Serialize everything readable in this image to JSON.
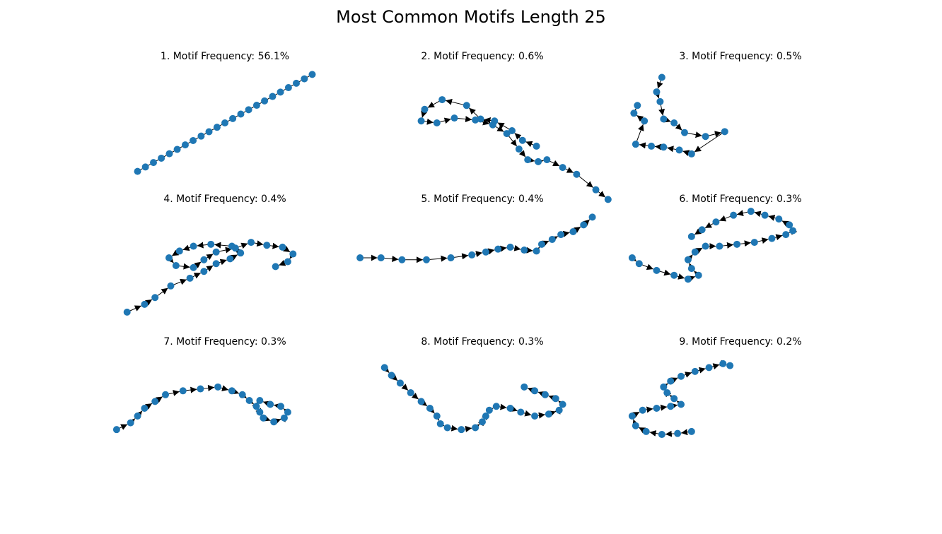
{
  "title": "Most Common Motifs Length 25",
  "colors": {
    "node": "#1f77b4",
    "edge": "#000000"
  },
  "chart_data": {
    "type": "network",
    "panels": [
      {
        "title": "1. Motif Frequency: 56.1%",
        "points": [
          [
            -0.5,
            -0.5
          ],
          [
            -0.455,
            -0.455
          ],
          [
            -0.409,
            -0.409
          ],
          [
            -0.364,
            -0.364
          ],
          [
            -0.318,
            -0.318
          ],
          [
            -0.273,
            -0.273
          ],
          [
            -0.227,
            -0.227
          ],
          [
            -0.182,
            -0.182
          ],
          [
            -0.136,
            -0.136
          ],
          [
            -0.091,
            -0.091
          ],
          [
            -0.045,
            -0.045
          ],
          [
            0.0,
            0.0
          ],
          [
            0.045,
            0.045
          ],
          [
            0.091,
            0.091
          ],
          [
            0.136,
            0.136
          ],
          [
            0.182,
            0.182
          ],
          [
            0.227,
            0.227
          ],
          [
            0.273,
            0.273
          ],
          [
            0.318,
            0.318
          ],
          [
            0.364,
            0.364
          ],
          [
            0.409,
            0.409
          ],
          [
            0.455,
            0.455
          ],
          [
            0.5,
            0.5
          ]
        ],
        "arrows": false
      },
      {
        "title": "2. Motif Frequency: 0.6%",
        "points": [
          [
            0.31,
            -0.24
          ],
          [
            0.23,
            -0.18
          ],
          [
            0.17,
            -0.08
          ],
          [
            0.07,
            0.02
          ],
          [
            -0.01,
            0.04
          ],
          [
            -0.09,
            0.18
          ],
          [
            -0.23,
            0.24
          ],
          [
            -0.33,
            0.14
          ],
          [
            -0.35,
            0.02
          ],
          [
            -0.26,
            0.0
          ],
          [
            -0.16,
            0.05
          ],
          [
            -0.04,
            0.03
          ],
          [
            0.06,
            -0.02
          ],
          [
            0.14,
            -0.11
          ],
          [
            0.21,
            -0.27
          ],
          [
            0.26,
            -0.38
          ],
          [
            0.32,
            -0.4
          ],
          [
            0.37,
            -0.38
          ],
          [
            0.46,
            -0.46
          ],
          [
            0.54,
            -0.53
          ],
          [
            0.65,
            -0.69
          ],
          [
            0.72,
            -0.79
          ]
        ],
        "arrows": true
      },
      {
        "title": "3. Motif Frequency: 0.5%",
        "points": [
          [
            -0.45,
            0.47
          ],
          [
            -0.48,
            0.32
          ],
          [
            -0.46,
            0.22
          ],
          [
            -0.44,
            0.04
          ],
          [
            -0.38,
            0.0
          ],
          [
            -0.32,
            -0.1
          ],
          [
            -0.2,
            -0.14
          ],
          [
            -0.09,
            -0.09
          ],
          [
            -0.28,
            -0.32
          ],
          [
            -0.35,
            -0.28
          ],
          [
            -0.44,
            -0.25
          ],
          [
            -0.51,
            -0.24
          ],
          [
            -0.6,
            -0.22
          ],
          [
            -0.55,
            0.02
          ],
          [
            -0.61,
            0.1
          ],
          [
            -0.59,
            0.18
          ]
        ],
        "arrows": true
      },
      {
        "title": "4. Motif Frequency: 0.4%",
        "points": [
          [
            -0.56,
            -0.48
          ],
          [
            -0.46,
            -0.4
          ],
          [
            -0.4,
            -0.33
          ],
          [
            -0.31,
            -0.21
          ],
          [
            -0.2,
            -0.13
          ],
          [
            -0.12,
            -0.06
          ],
          [
            -0.05,
            0.02
          ],
          [
            0.03,
            0.07
          ],
          [
            0.09,
            0.13
          ],
          [
            0.04,
            0.2
          ],
          [
            -0.08,
            0.22
          ],
          [
            -0.18,
            0.2
          ],
          [
            -0.26,
            0.15
          ],
          [
            -0.32,
            0.08
          ],
          [
            -0.28,
            0.0
          ],
          [
            -0.18,
            -0.02
          ],
          [
            -0.12,
            0.06
          ],
          [
            -0.05,
            0.14
          ],
          [
            0.06,
            0.18
          ],
          [
            0.15,
            0.24
          ],
          [
            0.24,
            0.21
          ],
          [
            0.33,
            0.19
          ],
          [
            0.39,
            0.12
          ],
          [
            0.36,
            0.04
          ],
          [
            0.29,
            -0.01
          ]
        ],
        "arrows": true
      },
      {
        "title": "5. Motif Frequency: 0.4%",
        "points": [
          [
            -0.7,
            0.08
          ],
          [
            -0.58,
            0.08
          ],
          [
            -0.46,
            0.06
          ],
          [
            -0.32,
            0.06
          ],
          [
            -0.18,
            0.08
          ],
          [
            -0.06,
            0.11
          ],
          [
            0.02,
            0.14
          ],
          [
            0.09,
            0.17
          ],
          [
            0.16,
            0.19
          ],
          [
            0.24,
            0.16
          ],
          [
            0.31,
            0.15
          ],
          [
            0.34,
            0.22
          ],
          [
            0.4,
            0.27
          ],
          [
            0.45,
            0.32
          ],
          [
            0.52,
            0.35
          ],
          [
            0.58,
            0.42
          ],
          [
            0.63,
            0.5
          ]
        ],
        "arrows": true
      },
      {
        "title": "6. Motif Frequency: 0.3%",
        "points": [
          [
            -0.62,
            0.08
          ],
          [
            -0.58,
            0.02
          ],
          [
            -0.48,
            -0.05
          ],
          [
            -0.38,
            -0.1
          ],
          [
            -0.3,
            -0.14
          ],
          [
            -0.24,
            -0.1
          ],
          [
            -0.28,
            -0.03
          ],
          [
            -0.3,
            0.06
          ],
          [
            -0.26,
            0.14
          ],
          [
            -0.2,
            0.2
          ],
          [
            -0.12,
            0.2
          ],
          [
            -0.02,
            0.22
          ],
          [
            0.08,
            0.24
          ],
          [
            0.18,
            0.28
          ],
          [
            0.26,
            0.32
          ],
          [
            0.3,
            0.36
          ],
          [
            0.28,
            0.42
          ],
          [
            0.22,
            0.48
          ],
          [
            0.14,
            0.52
          ],
          [
            0.06,
            0.56
          ],
          [
            -0.04,
            0.52
          ],
          [
            -0.14,
            0.45
          ],
          [
            -0.22,
            0.37
          ],
          [
            -0.28,
            0.3
          ]
        ],
        "arrows": true
      },
      {
        "title": "7. Motif Frequency: 0.3%",
        "points": [
          [
            -0.62,
            -0.22
          ],
          [
            -0.54,
            -0.15
          ],
          [
            -0.5,
            -0.08
          ],
          [
            -0.46,
            0.0
          ],
          [
            -0.4,
            0.07
          ],
          [
            -0.34,
            0.14
          ],
          [
            -0.24,
            0.18
          ],
          [
            -0.14,
            0.2
          ],
          [
            -0.04,
            0.22
          ],
          [
            0.04,
            0.18
          ],
          [
            0.1,
            0.14
          ],
          [
            0.14,
            0.08
          ],
          [
            0.18,
            0.02
          ],
          [
            0.2,
            -0.04
          ],
          [
            0.22,
            -0.1
          ],
          [
            0.28,
            -0.14
          ],
          [
            0.34,
            -0.1
          ],
          [
            0.36,
            -0.04
          ],
          [
            0.32,
            0.02
          ],
          [
            0.26,
            0.04
          ],
          [
            0.2,
            0.08
          ]
        ],
        "arrows": true
      },
      {
        "title": "8. Motif Frequency: 0.3%",
        "points": [
          [
            -0.56,
            0.42
          ],
          [
            -0.52,
            0.34
          ],
          [
            -0.47,
            0.26
          ],
          [
            -0.41,
            0.16
          ],
          [
            -0.35,
            0.07
          ],
          [
            -0.3,
            0.0
          ],
          [
            -0.26,
            -0.08
          ],
          [
            -0.24,
            -0.16
          ],
          [
            -0.2,
            -0.2
          ],
          [
            -0.12,
            -0.22
          ],
          [
            -0.04,
            -0.2
          ],
          [
            0.0,
            -0.14
          ],
          [
            0.02,
            -0.08
          ],
          [
            0.04,
            -0.02
          ],
          [
            0.08,
            0.02
          ],
          [
            0.16,
            0.0
          ],
          [
            0.22,
            -0.04
          ],
          [
            0.3,
            -0.08
          ],
          [
            0.38,
            -0.06
          ],
          [
            0.44,
            -0.02
          ],
          [
            0.46,
            0.04
          ],
          [
            0.42,
            0.1
          ],
          [
            0.36,
            0.14
          ],
          [
            0.3,
            0.18
          ],
          [
            0.24,
            0.22
          ]
        ],
        "arrows": true
      },
      {
        "title": "9. Motif Frequency: 0.2%",
        "points": [
          [
            -0.28,
            -0.24
          ],
          [
            -0.36,
            -0.26
          ],
          [
            -0.45,
            -0.27
          ],
          [
            -0.54,
            -0.24
          ],
          [
            -0.6,
            -0.18
          ],
          [
            -0.62,
            -0.08
          ],
          [
            -0.56,
            -0.02
          ],
          [
            -0.48,
            0.0
          ],
          [
            -0.4,
            0.02
          ],
          [
            -0.34,
            0.04
          ],
          [
            -0.38,
            0.1
          ],
          [
            -0.42,
            0.16
          ],
          [
            -0.44,
            0.22
          ],
          [
            -0.4,
            0.28
          ],
          [
            -0.34,
            0.33
          ],
          [
            -0.26,
            0.38
          ],
          [
            -0.18,
            0.42
          ],
          [
            -0.1,
            0.46
          ],
          [
            -0.06,
            0.44
          ]
        ],
        "arrows": true
      }
    ]
  }
}
